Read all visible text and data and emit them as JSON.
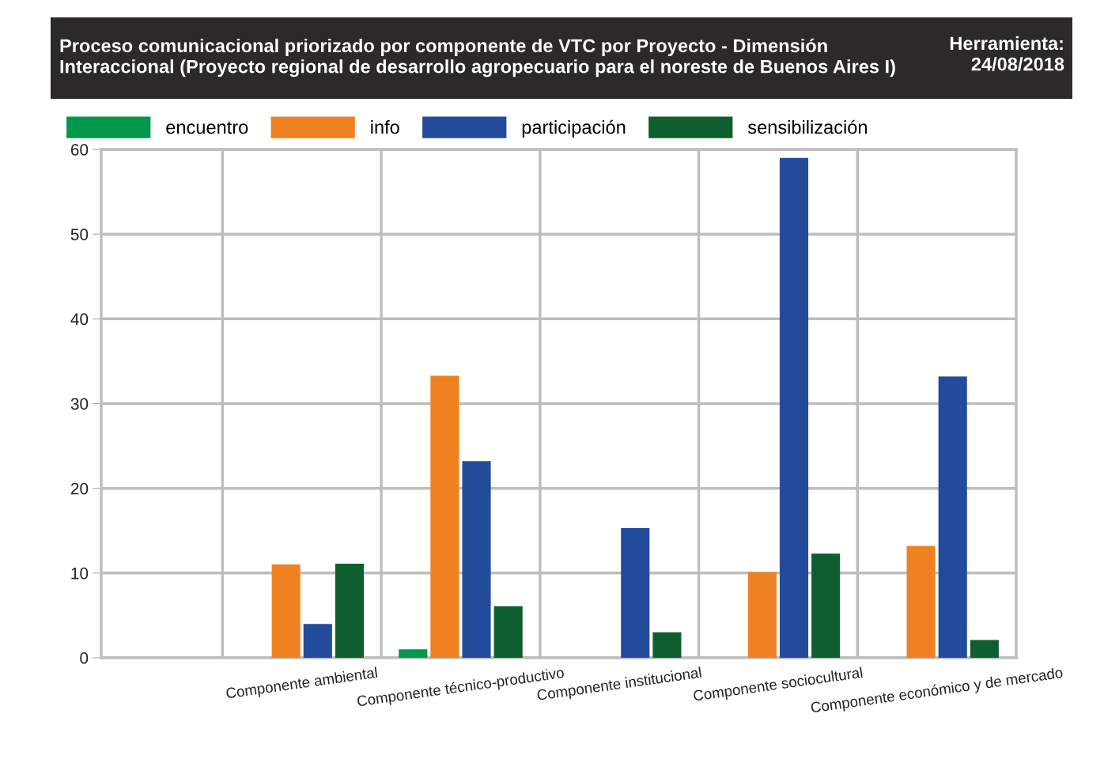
{
  "chart_data": {
    "type": "bar",
    "title": "Proceso comunicacional priorizado por componente de VTC por Proyecto - Dimensión\nInteraccional (Proyecto regional de desarrollo agropecuario para el noreste de Buenos Aires I)",
    "subtitle": "Herramienta:\n24/08/2018",
    "categories": [
      "Componente ambiental",
      "Componente técnico-productivo",
      "Componente institucional",
      "Componente sociocultural",
      "Componente económico y de mercado"
    ],
    "series": [
      {
        "name": "encuentro",
        "color": "#00984a",
        "values": [
          null,
          1,
          null,
          null,
          null
        ]
      },
      {
        "name": "info",
        "color": "#ef8121",
        "values": [
          11,
          33.3,
          null,
          10.1,
          13.2
        ]
      },
      {
        "name": "participación",
        "color": "#234b9b",
        "values": [
          4,
          23.2,
          15.3,
          59,
          33.2
        ]
      },
      {
        "name": "sensibilización",
        "color": "#0e5e30",
        "values": [
          11.1,
          6.1,
          3,
          12.3,
          2.1
        ]
      }
    ],
    "ylim": [
      0,
      60
    ],
    "yticks": [
      0,
      10,
      20,
      30,
      40,
      50,
      60
    ],
    "grid": true,
    "legend": "top"
  }
}
